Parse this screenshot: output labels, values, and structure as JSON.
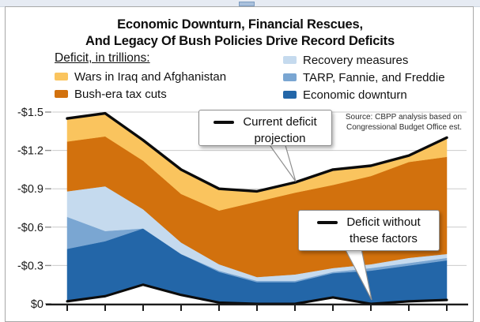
{
  "window": {
    "strip_color": "#e6ebf3",
    "strip_mark_color": "#a9c0dc"
  },
  "title": {
    "line1": "Economic Downturn, Financial Rescues,",
    "line2": "And Legacy Of Bush Policies Drive Record Deficits"
  },
  "legend": {
    "header": "Deficit, in trillions:",
    "items": [
      {
        "label": "Wars in Iraq and Afghanistan",
        "color": "#FAC45E",
        "column": "left"
      },
      {
        "label": "Bush-era tax cuts",
        "color": "#D2710D",
        "column": "left"
      },
      {
        "label": "Recovery measures",
        "color": "#C5DAEE",
        "column": "right"
      },
      {
        "label": "TARP, Fannie, and Freddie",
        "color": "#7AA6D2",
        "column": "right"
      },
      {
        "label": "Economic downturn",
        "color": "#2366A8",
        "column": "right"
      }
    ]
  },
  "source": {
    "line1": "Source: CBPP analysis based on",
    "line2": "Congressional Budget Office est."
  },
  "annotations": {
    "current": {
      "line1": "Current deficit",
      "line2": "projection"
    },
    "without": {
      "line1": "Deficit without",
      "line2": "these factors"
    }
  },
  "chart_data": {
    "type": "area",
    "stacked": true,
    "title": "Economic Downturn, Financial Rescues, And Legacy Of Bush Policies Drive Record Deficits",
    "unit": "trillions of dollars (deficit, plotted downward-negative axis)",
    "x_count": 11,
    "x_tick_labels_visible": false,
    "grid": true,
    "y_axis": {
      "labels": [
        "-$1.5",
        "-$1.2",
        "-$0.9",
        "-$0.6",
        "-$0.3",
        "$0"
      ],
      "values": [
        1.5,
        1.2,
        0.9,
        0.6,
        0.3,
        0
      ],
      "ylim": [
        0,
        1.5
      ]
    },
    "baseline": {
      "name": "Deficit without these factors",
      "line_color": "#0b0b0b",
      "values": [
        0.02,
        0.06,
        0.15,
        0.07,
        0.01,
        0.0,
        0.0,
        0.05,
        0.0,
        0.02,
        0.03
      ]
    },
    "series": [
      {
        "name": "Economic downturn",
        "color": "#2366A8",
        "values": [
          0.41,
          0.43,
          0.44,
          0.32,
          0.24,
          0.17,
          0.17,
          0.19,
          0.26,
          0.28,
          0.31
        ]
      },
      {
        "name": "TARP, Fannie, and Freddie",
        "color": "#7AA6D2",
        "values": [
          0.25,
          0.08,
          0.0,
          0.0,
          0.01,
          0.01,
          0.01,
          0.01,
          0.02,
          0.02,
          0.02
        ]
      },
      {
        "name": "Recovery measures",
        "color": "#C5DAEE",
        "values": [
          0.2,
          0.35,
          0.15,
          0.09,
          0.05,
          0.03,
          0.05,
          0.03,
          0.03,
          0.04,
          0.03
        ]
      },
      {
        "name": "Bush-era tax cuts",
        "color": "#D2710D",
        "values": [
          0.39,
          0.39,
          0.38,
          0.38,
          0.42,
          0.59,
          0.64,
          0.65,
          0.69,
          0.75,
          0.76
        ]
      },
      {
        "name": "Wars in Iraq and Afghanistan",
        "color": "#FAC45E",
        "values": [
          0.18,
          0.18,
          0.16,
          0.19,
          0.17,
          0.08,
          0.08,
          0.12,
          0.08,
          0.05,
          0.15
        ]
      }
    ],
    "total_line": {
      "name": "Current deficit projection",
      "line_color": "#0b0b0b",
      "totals": [
        1.45,
        1.49,
        1.28,
        1.05,
        0.9,
        0.88,
        0.95,
        1.05,
        1.08,
        1.16,
        1.3
      ]
    }
  }
}
